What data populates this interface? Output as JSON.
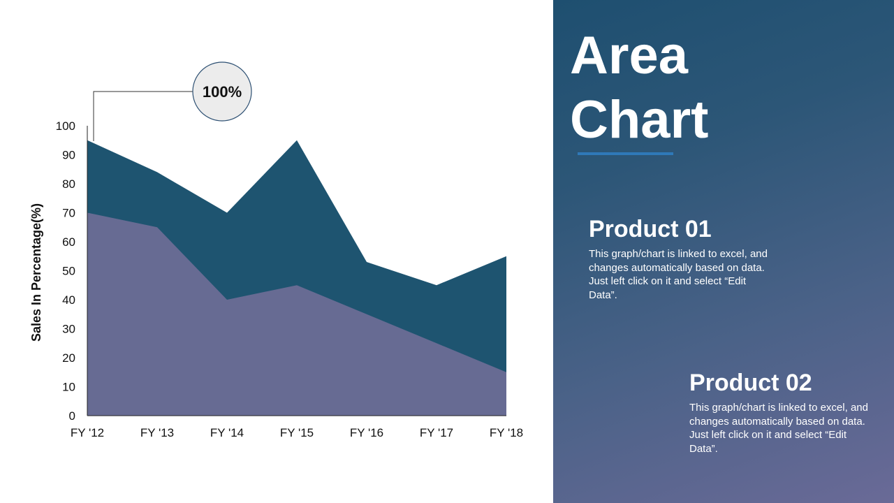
{
  "slide": {
    "title_line1": "Area",
    "title_line2": "Chart"
  },
  "callout": {
    "label": "100%"
  },
  "products": [
    {
      "name": "Product 01",
      "description": "This graph/chart is linked to excel, and changes automatically based on data. Just left click on it and select “Edit Data”."
    },
    {
      "name": "Product 02",
      "description": "This graph/chart is linked to excel, and changes automatically based on data. Just left click on it and select “Edit Data”."
    }
  ],
  "colors": {
    "series_back": "#1e5470",
    "series_front": "#676b93",
    "badge_fill": "#ececec",
    "badge_stroke": "#2c4f72",
    "accent_underline": "#2f79b8"
  },
  "chart_data": {
    "type": "area",
    "categories": [
      "FY '12",
      "FY '13",
      "FY '14",
      "FY '15",
      "FY '16",
      "FY '17",
      "FY '18"
    ],
    "series": [
      {
        "values": [
          95,
          84,
          70,
          95,
          53,
          45,
          55
        ]
      },
      {
        "values": [
          70,
          65,
          40,
          45,
          35,
          25,
          15
        ]
      }
    ],
    "ylabel": "Sales In Percentage(%)",
    "ylim": [
      0,
      100
    ],
    "yticks": [
      0,
      10,
      20,
      30,
      40,
      50,
      60,
      70,
      80,
      90,
      100
    ],
    "grid": false,
    "legend": "none"
  }
}
